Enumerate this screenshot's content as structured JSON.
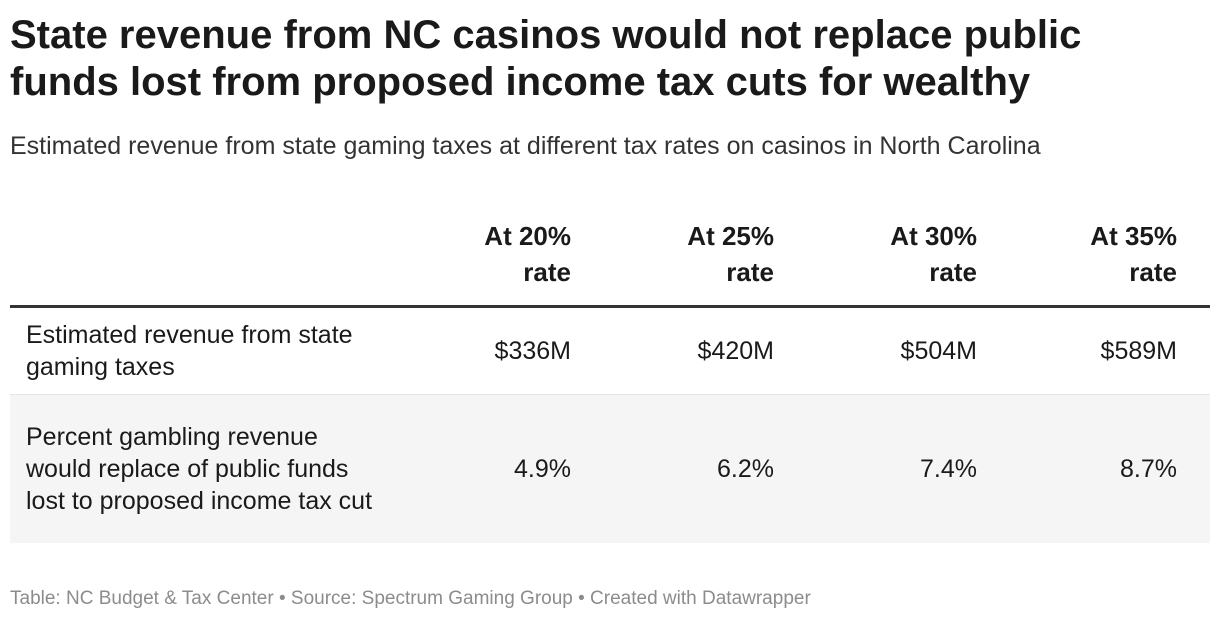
{
  "title": "State revenue from NC casinos would not replace public funds lost from proposed income tax cuts for wealthy",
  "subtitle": "Estimated revenue from state gaming taxes at different tax rates on casinos in North Carolina",
  "footer": "Table: NC Budget & Tax Center • Source: Spectrum Gaming Group • Created with Datawrapper",
  "chart_data": {
    "type": "table",
    "columns": [
      "",
      "At 20%\nrate",
      "At 25%\nrate",
      "At 30%\nrate",
      "At 35%\nrate"
    ],
    "rows": [
      {
        "label": "Estimated revenue from state gaming taxes",
        "values": [
          "$336M",
          "$420M",
          "$504M",
          "$589M"
        ]
      },
      {
        "label": "Percent gambling revenue would replace of public funds lost to proposed income tax cut",
        "values": [
          "4.9%",
          "6.2%",
          "7.4%",
          "8.7%"
        ]
      }
    ]
  }
}
